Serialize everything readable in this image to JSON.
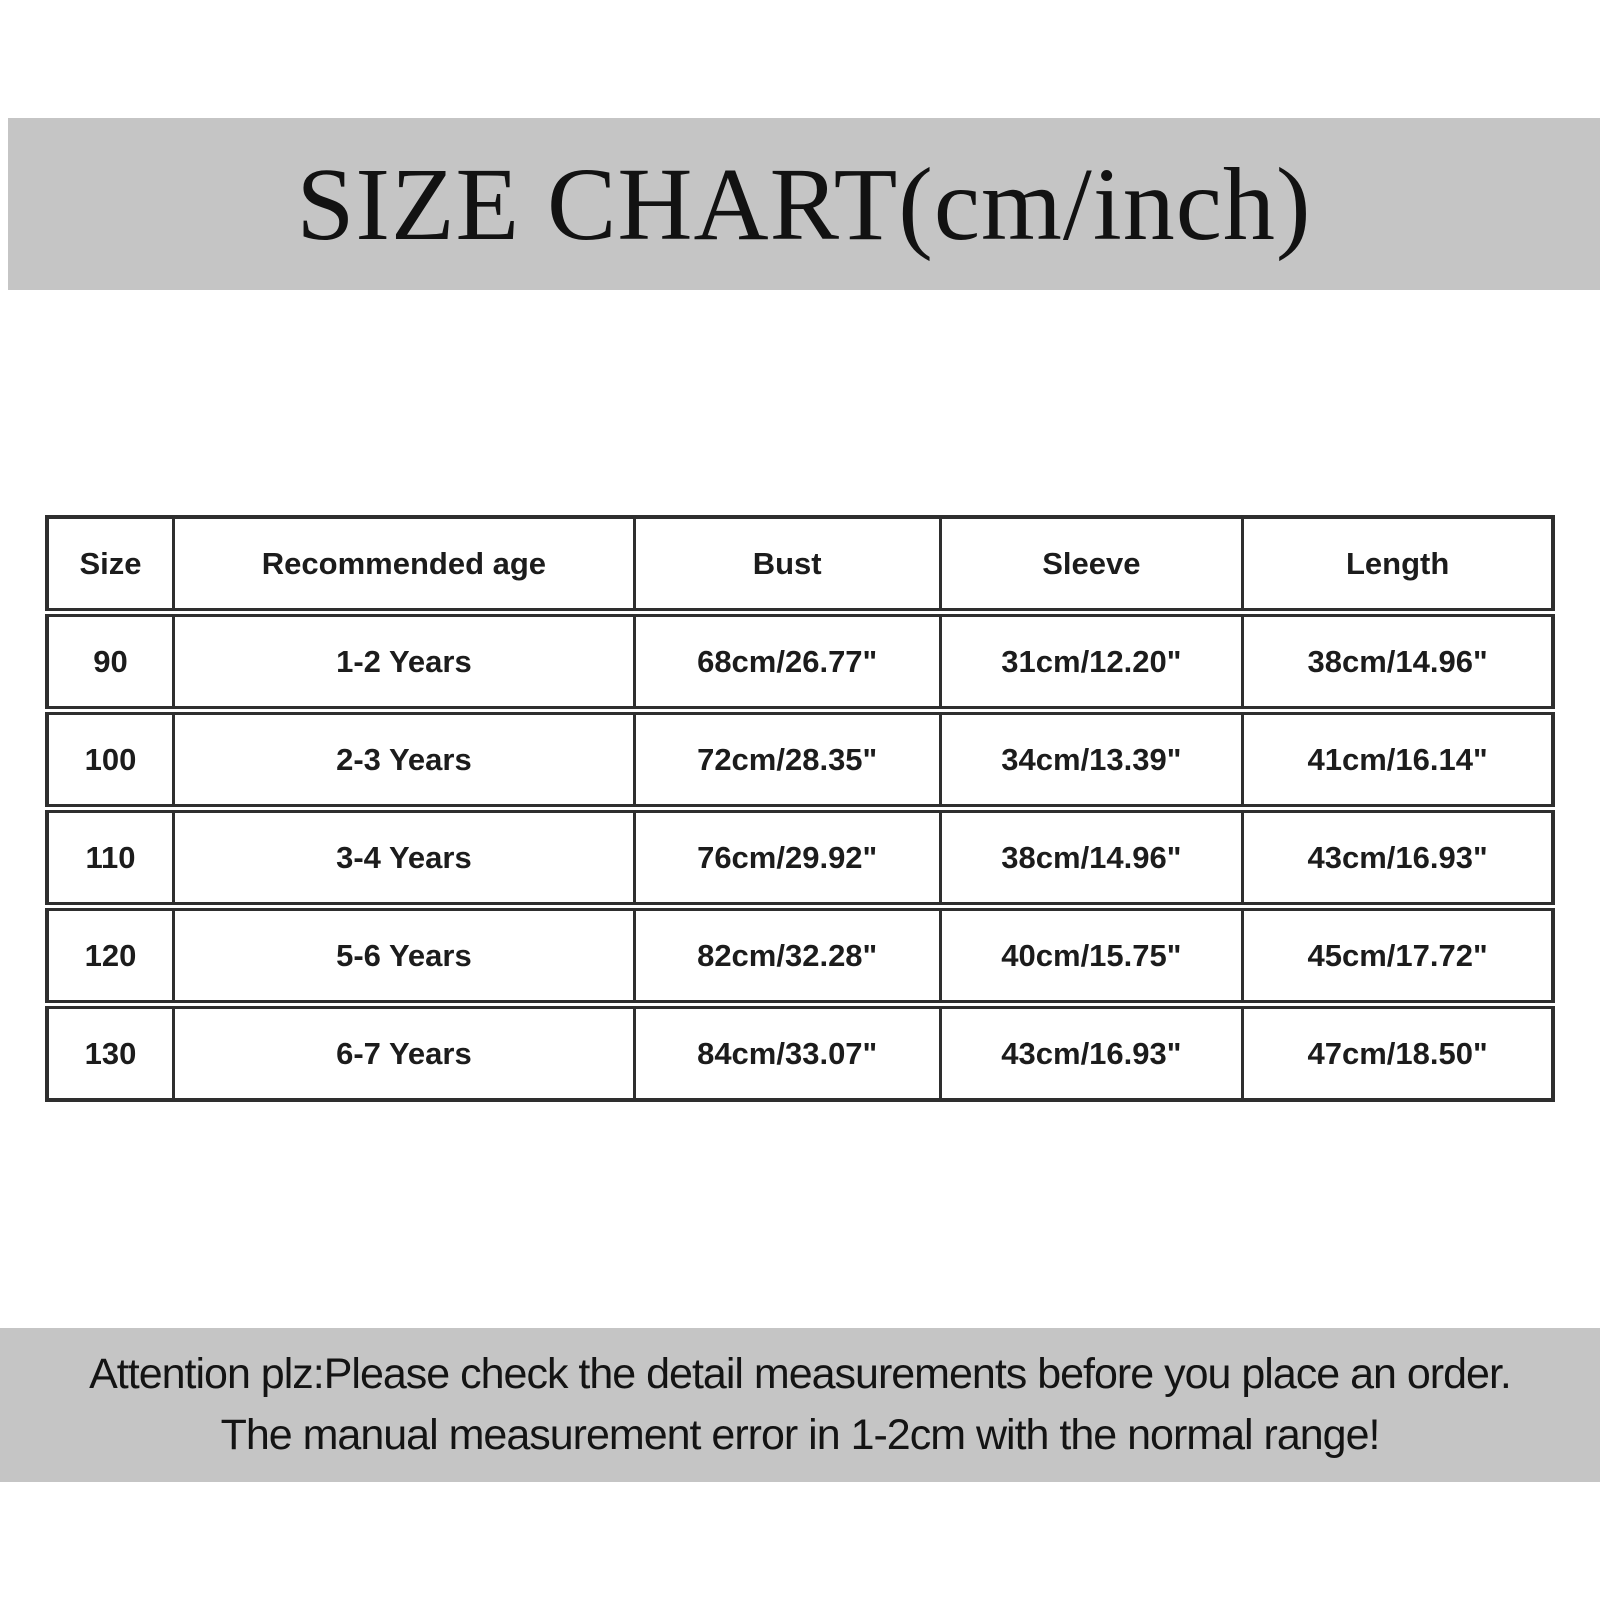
{
  "colors": {
    "banner_bg": "#c5c5c5",
    "table_border": "#2e2e2e",
    "text": "#161616",
    "page_bg": "#ffffff"
  },
  "header": {
    "title": "SIZE CHART(cm/inch)"
  },
  "table": {
    "columns": [
      "Size",
      "Recommended age",
      "Bust",
      "Sleeve",
      "Length"
    ],
    "rows": [
      [
        "90",
        "1-2 Years",
        "68cm/26.77\"",
        "31cm/12.20\"",
        "38cm/14.96\""
      ],
      [
        "100",
        "2-3 Years",
        "72cm/28.35\"",
        "34cm/13.39\"",
        "41cm/16.14\""
      ],
      [
        "110",
        "3-4 Years",
        "76cm/29.92\"",
        "38cm/14.96\"",
        "43cm/16.93\""
      ],
      [
        "120",
        "5-6 Years",
        "82cm/32.28\"",
        "40cm/15.75\"",
        "45cm/17.72\""
      ],
      [
        "130",
        "6-7 Years",
        "84cm/33.07\"",
        "43cm/16.93\"",
        "47cm/18.50\""
      ]
    ]
  },
  "footer": {
    "line1": "Attention plz:Please check the detail measurements before you place an order.",
    "line2": "The manual measurement error in 1-2cm with the normal range!"
  }
}
